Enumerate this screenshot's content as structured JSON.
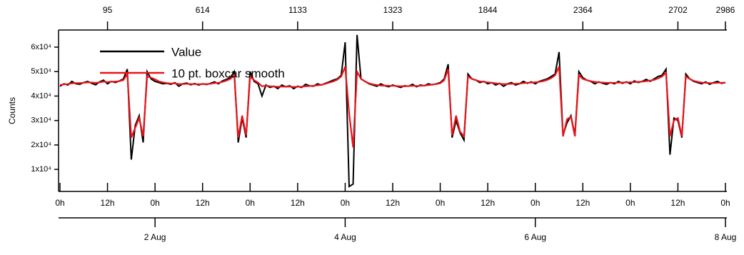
{
  "chart_data": {
    "type": "line",
    "y_label": "Counts",
    "xlim": [
      0,
      168
    ],
    "ylim": [
      1000,
      67000
    ],
    "yticks": [
      {
        "value": 10000,
        "label": "1x10⁴"
      },
      {
        "value": 20000,
        "label": "2x10⁴"
      },
      {
        "value": 30000,
        "label": "3x10⁴"
      },
      {
        "value": 40000,
        "label": "4x10⁴"
      },
      {
        "value": 50000,
        "label": "5x10⁴"
      },
      {
        "value": 60000,
        "label": "6x10⁴"
      }
    ],
    "xticks": [
      {
        "value": 0,
        "label": "0h"
      },
      {
        "value": 12,
        "label": "12h"
      },
      {
        "value": 24,
        "label": "0h"
      },
      {
        "value": 36,
        "label": "12h"
      },
      {
        "value": 48,
        "label": "0h"
      },
      {
        "value": 60,
        "label": "12h"
      },
      {
        "value": 72,
        "label": "0h"
      },
      {
        "value": 84,
        "label": "12h"
      },
      {
        "value": 96,
        "label": "0h"
      },
      {
        "value": 108,
        "label": "12h"
      },
      {
        "value": 120,
        "label": "0h"
      },
      {
        "value": 132,
        "label": "12h"
      },
      {
        "value": 144,
        "label": "0h"
      },
      {
        "value": 156,
        "label": "12h"
      },
      {
        "value": 168,
        "label": "0h"
      }
    ],
    "xticks_date": [
      {
        "value": 24,
        "label": "2 Aug"
      },
      {
        "value": 72,
        "label": "4 Aug"
      },
      {
        "value": 120,
        "label": "6 Aug"
      },
      {
        "value": 168,
        "label": "8 Aug"
      }
    ],
    "xticks_top": [
      {
        "value": 12,
        "label": "95"
      },
      {
        "value": 36,
        "label": "614"
      },
      {
        "value": 60,
        "label": "1133"
      },
      {
        "value": 84,
        "label": "1323"
      },
      {
        "value": 108,
        "label": "1844"
      },
      {
        "value": 132,
        "label": "2364"
      },
      {
        "value": 156,
        "label": "2702"
      },
      {
        "value": 168,
        "label": "2986"
      }
    ],
    "legend": "upper left",
    "x": [
      0,
      1,
      2,
      3,
      4,
      5,
      6,
      7,
      8,
      9,
      10,
      11,
      12,
      13,
      14,
      15,
      16,
      17,
      18,
      19,
      20,
      21,
      22,
      23,
      24,
      25,
      26,
      27,
      28,
      29,
      30,
      31,
      32,
      33,
      34,
      35,
      36,
      37,
      38,
      39,
      40,
      41,
      42,
      43,
      44,
      45,
      46,
      47,
      48,
      49,
      50,
      51,
      52,
      53,
      54,
      55,
      56,
      57,
      58,
      59,
      60,
      61,
      62,
      63,
      64,
      65,
      66,
      67,
      68,
      69,
      70,
      71,
      72,
      73,
      74,
      75,
      76,
      77,
      78,
      79,
      80,
      81,
      82,
      83,
      84,
      85,
      86,
      87,
      88,
      89,
      90,
      91,
      92,
      93,
      94,
      95,
      96,
      97,
      98,
      99,
      100,
      101,
      102,
      103,
      104,
      105,
      106,
      107,
      108,
      109,
      110,
      111,
      112,
      113,
      114,
      115,
      116,
      117,
      118,
      119,
      120,
      121,
      122,
      123,
      124,
      125,
      126,
      127,
      128,
      129,
      130,
      131,
      132,
      133,
      134,
      135,
      136,
      137,
      138,
      139,
      140,
      141,
      142,
      143,
      144,
      145,
      146,
      147,
      148,
      149,
      150,
      151,
      152,
      153,
      154,
      155,
      156,
      157,
      158,
      159,
      160,
      161,
      162,
      163,
      164,
      165,
      166,
      167,
      168
    ],
    "series": [
      {
        "name": "Value",
        "color": "#000000",
        "values": [
          44000,
          45000,
          44500,
          46000,
          45000,
          44800,
          45500,
          46000,
          45200,
          44600,
          45800,
          46500,
          45000,
          46000,
          45500,
          46200,
          47000,
          51000,
          14000,
          28000,
          32000,
          21000,
          50000,
          47000,
          46000,
          45500,
          45000,
          45200,
          44800,
          45500,
          44000,
          45000,
          45300,
          44600,
          45100,
          44500,
          45000,
          44700,
          45200,
          45800,
          45000,
          46200,
          46800,
          47500,
          50000,
          21000,
          31000,
          23000,
          50000,
          46000,
          45000,
          40000,
          44500,
          43500,
          44000,
          43000,
          44500,
          43800,
          44200,
          43000,
          44000,
          43500,
          44800,
          44200,
          44000,
          45000,
          44500,
          45200,
          45800,
          46500,
          47000,
          48500,
          62000,
          3000,
          4000,
          65000,
          47000,
          46000,
          45000,
          44500,
          44000,
          45000,
          44200,
          43800,
          44500,
          44000,
          43500,
          44200,
          44000,
          44800,
          43800,
          44500,
          44200,
          45000,
          44600,
          45000,
          45500,
          47000,
          53000,
          23000,
          30000,
          25000,
          22000,
          49000,
          47000,
          46500,
          45500,
          46000,
          45000,
          45500,
          44500,
          45200,
          44000,
          45000,
          45500,
          44500,
          45000,
          46000,
          45200,
          45800,
          45000,
          46000,
          46500,
          47000,
          48000,
          49000,
          58000,
          24000,
          29000,
          32000,
          24000,
          50000,
          47500,
          46500,
          46000,
          45000,
          45800,
          45200,
          44800,
          45500,
          45000,
          46000,
          45200,
          45800,
          45000,
          46200,
          45500,
          46000,
          46800,
          46000,
          47000,
          48000,
          48500,
          51000,
          16000,
          31000,
          30000,
          23000,
          49000,
          47000,
          46000,
          45500,
          45000,
          45800,
          44800,
          45500,
          46000,
          45200,
          45500
        ]
      },
      {
        "name": "10 pt. boxcar smooth",
        "color": "#e8141a",
        "values": [
          44500,
          44800,
          44900,
          45200,
          45300,
          45300,
          45400,
          45600,
          45500,
          45400,
          45600,
          45900,
          45700,
          45900,
          45900,
          46100,
          46500,
          49000,
          23000,
          27000,
          31000,
          23500,
          48000,
          47500,
          46800,
          46000,
          45600,
          45300,
          45100,
          45200,
          44900,
          44900,
          45000,
          44900,
          44900,
          44800,
          44900,
          44900,
          45000,
          45300,
          45400,
          45800,
          46300,
          47000,
          48500,
          23000,
          32000,
          24000,
          48000,
          46500,
          45500,
          44000,
          44200,
          44000,
          43900,
          43800,
          43900,
          43800,
          43900,
          43700,
          43800,
          43800,
          44000,
          44100,
          44200,
          44400,
          44600,
          45000,
          45500,
          46000,
          46700,
          48000,
          52000,
          33000,
          19000,
          50000,
          47000,
          46000,
          45200,
          44800,
          44500,
          44300,
          44300,
          44200,
          44200,
          44100,
          44000,
          44000,
          44100,
          44200,
          44100,
          44200,
          44300,
          44500,
          44700,
          44900,
          45200,
          46500,
          51000,
          24000,
          32000,
          25500,
          23500,
          48000,
          47000,
          46500,
          46000,
          45800,
          45600,
          45400,
          45200,
          45000,
          44900,
          44900,
          45000,
          45000,
          45100,
          45300,
          45400,
          45500,
          45600,
          45800,
          46100,
          46600,
          47300,
          48500,
          52000,
          23500,
          30500,
          31500,
          23500,
          48500,
          47000,
          46500,
          46100,
          45800,
          45600,
          45500,
          45400,
          45400,
          45400,
          45500,
          45500,
          45600,
          45600,
          45700,
          45800,
          45900,
          46100,
          46300,
          46600,
          47200,
          48000,
          49500,
          23500,
          30000,
          31000,
          23500,
          48000,
          47000,
          46200,
          45800,
          45500,
          45400,
          45300,
          45300,
          45400,
          45400,
          45500
        ]
      }
    ]
  }
}
